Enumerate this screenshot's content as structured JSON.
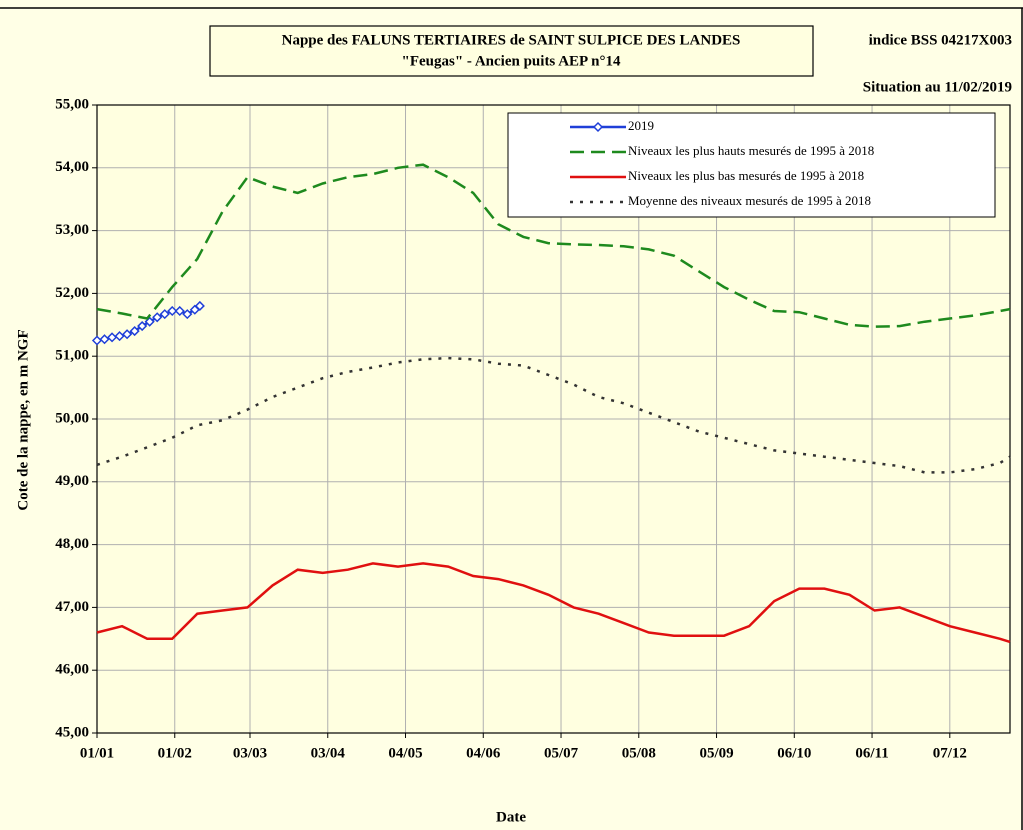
{
  "chart_data": {
    "type": "line",
    "title": "Nappe des FALUNS TERTIAIRES de SAINT SULPICE DES LANDES",
    "subtitle": "\"Feugas\" - Ancien puits AEP n°14",
    "annotations": [
      "indice BSS 04217X003",
      "Situation au 11/02/2019"
    ],
    "xlabel": "Date",
    "ylabel": "Cote de la nappe, en m NGF",
    "xlim": [
      1,
      365
    ],
    "ylim": [
      45,
      55
    ],
    "xticks": [
      {
        "value": 1,
        "label": "01/01"
      },
      {
        "value": 32,
        "label": "01/02"
      },
      {
        "value": 62,
        "label": "03/03"
      },
      {
        "value": 93,
        "label": "03/04"
      },
      {
        "value": 124,
        "label": "04/05"
      },
      {
        "value": 155,
        "label": "04/06"
      },
      {
        "value": 186,
        "label": "05/07"
      },
      {
        "value": 217,
        "label": "05/08"
      },
      {
        "value": 248,
        "label": "05/09"
      },
      {
        "value": 279,
        "label": "06/10"
      },
      {
        "value": 310,
        "label": "06/11"
      },
      {
        "value": 341,
        "label": "07/12"
      }
    ],
    "yticks": [
      {
        "value": 45,
        "label": "45,00"
      },
      {
        "value": 46,
        "label": "46,00"
      },
      {
        "value": 47,
        "label": "47,00"
      },
      {
        "value": 48,
        "label": "48,00"
      },
      {
        "value": 49,
        "label": "49,00"
      },
      {
        "value": 50,
        "label": "50,00"
      },
      {
        "value": 51,
        "label": "51,00"
      },
      {
        "value": 52,
        "label": "52,00"
      },
      {
        "value": 53,
        "label": "53,00"
      },
      {
        "value": 54,
        "label": "54,00"
      },
      {
        "value": 55,
        "label": "55,00"
      }
    ],
    "grid": true,
    "legend": "upper right",
    "series": [
      {
        "name": "2019",
        "color": "#1f3fd8",
        "style": "marker",
        "x": [
          1,
          4,
          7,
          10,
          13,
          16,
          19,
          22,
          25,
          28,
          31,
          34,
          37,
          40,
          42
        ],
        "values": [
          51.25,
          51.27,
          51.3,
          51.32,
          51.35,
          51.4,
          51.48,
          51.55,
          51.62,
          51.67,
          51.72,
          51.72,
          51.67,
          51.74,
          51.8
        ]
      },
      {
        "name": "Niveaux les plus hauts mesurés de 1995 à 2018",
        "color": "#1e8a1e",
        "style": "dashed",
        "x": [
          1,
          11,
          21,
          31,
          41,
          51,
          61,
          71,
          81,
          91,
          101,
          111,
          121,
          131,
          141,
          151,
          161,
          171,
          181,
          191,
          201,
          211,
          221,
          231,
          241,
          251,
          261,
          271,
          281,
          291,
          301,
          311,
          321,
          331,
          341,
          351,
          361,
          365
        ],
        "values": [
          51.75,
          51.68,
          51.6,
          52.1,
          52.55,
          53.3,
          53.85,
          53.7,
          53.6,
          53.75,
          53.85,
          53.9,
          54.0,
          54.05,
          53.85,
          53.6,
          53.1,
          52.9,
          52.8,
          52.78,
          52.77,
          52.75,
          52.7,
          52.6,
          52.35,
          52.1,
          51.9,
          51.72,
          51.7,
          51.6,
          51.5,
          51.47,
          51.48,
          51.55,
          51.6,
          51.65,
          51.72,
          51.75
        ]
      },
      {
        "name": "Niveaux les plus bas mesurés de 1995 à 2018",
        "color": "#e01010",
        "style": "solid",
        "x": [
          1,
          11,
          21,
          31,
          41,
          51,
          61,
          71,
          81,
          91,
          101,
          111,
          121,
          131,
          141,
          151,
          161,
          171,
          181,
          191,
          201,
          211,
          221,
          231,
          241,
          251,
          261,
          271,
          281,
          291,
          301,
          311,
          321,
          331,
          341,
          351,
          361,
          365
        ],
        "values": [
          46.6,
          46.7,
          46.5,
          46.5,
          46.9,
          46.95,
          47.0,
          47.35,
          47.6,
          47.55,
          47.6,
          47.7,
          47.65,
          47.7,
          47.65,
          47.5,
          47.45,
          47.35,
          47.2,
          47.0,
          46.9,
          46.75,
          46.6,
          46.55,
          46.55,
          46.55,
          46.7,
          47.1,
          47.3,
          47.3,
          47.2,
          46.95,
          47.0,
          46.85,
          46.7,
          46.6,
          46.5,
          46.45
        ]
      },
      {
        "name": "Moyenne des niveaux mesurés de 1995 à 2018",
        "color": "#333333",
        "style": "dotted",
        "x": [
          1,
          11,
          21,
          31,
          41,
          51,
          61,
          71,
          81,
          91,
          101,
          111,
          121,
          131,
          141,
          151,
          161,
          171,
          181,
          191,
          201,
          211,
          221,
          231,
          241,
          251,
          261,
          271,
          281,
          291,
          301,
          311,
          321,
          331,
          341,
          351,
          361,
          365
        ],
        "values": [
          49.27,
          49.4,
          49.55,
          49.7,
          49.9,
          49.98,
          50.15,
          50.35,
          50.5,
          50.65,
          50.75,
          50.82,
          50.9,
          50.95,
          50.97,
          50.95,
          50.88,
          50.85,
          50.7,
          50.55,
          50.35,
          50.25,
          50.1,
          49.95,
          49.8,
          49.7,
          49.6,
          49.5,
          49.45,
          49.4,
          49.35,
          49.3,
          49.25,
          49.15,
          49.15,
          49.2,
          49.3,
          49.4
        ]
      }
    ]
  }
}
